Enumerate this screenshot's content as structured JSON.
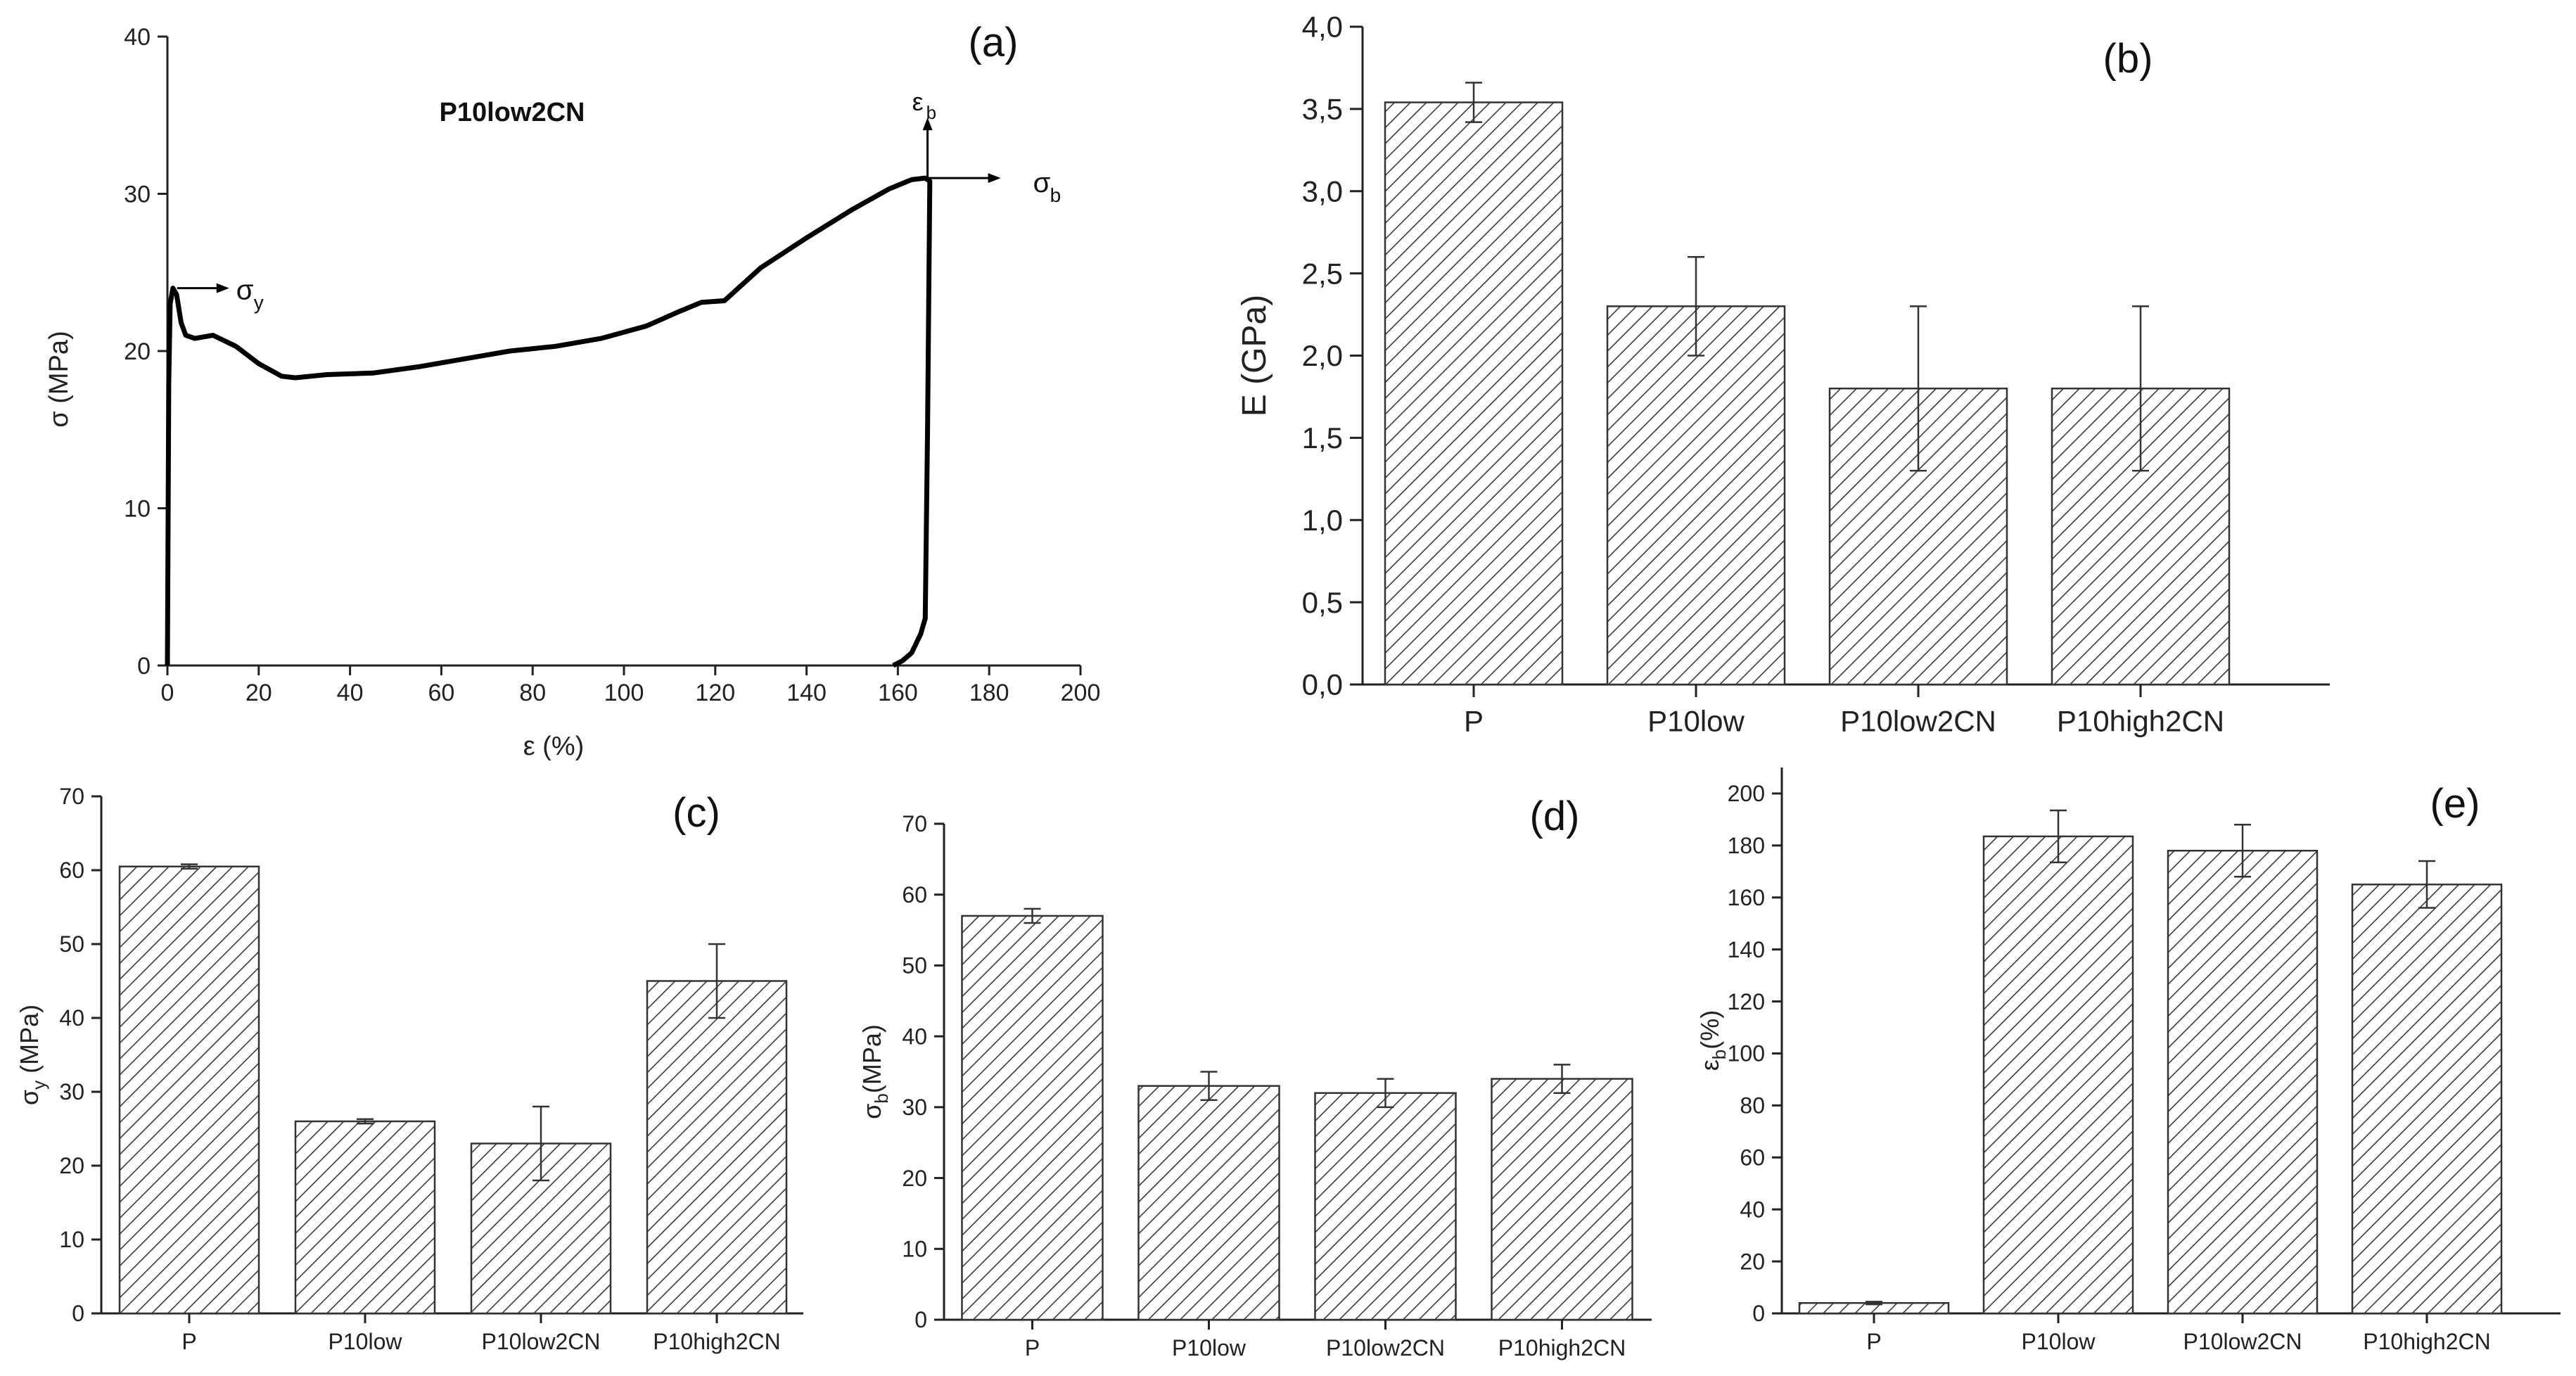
{
  "chart_data": [
    {
      "id": "a",
      "type": "line",
      "panel_label": "(a)",
      "title": "P10low2CN",
      "xlabel": "ε (%)",
      "ylabel": "σ (MPa)",
      "xlim": [
        0,
        200
      ],
      "ylim": [
        0,
        40
      ],
      "x_ticks": [
        "0",
        "20",
        "40",
        "60",
        "80",
        "100",
        "120",
        "140",
        "160",
        "180",
        "200"
      ],
      "y_ticks": [
        "0",
        "10",
        "20",
        "30",
        "40"
      ],
      "x_tick_values": [
        0,
        20,
        40,
        60,
        80,
        100,
        120,
        140,
        160,
        180,
        200
      ],
      "y_tick_values": [
        0,
        10,
        20,
        30,
        40
      ],
      "series": [
        {
          "name": "P10low2CN",
          "points": [
            [
              0,
              0
            ],
            [
              0.3,
              18
            ],
            [
              0.6,
              23
            ],
            [
              1.2,
              24
            ],
            [
              2,
              23.6
            ],
            [
              3,
              21.8
            ],
            [
              4,
              21
            ],
            [
              6,
              20.8
            ],
            [
              10,
              21
            ],
            [
              15,
              20.3
            ],
            [
              20,
              19.2
            ],
            [
              25,
              18.4
            ],
            [
              28,
              18.3
            ],
            [
              35,
              18.5
            ],
            [
              45,
              18.6
            ],
            [
              55,
              19
            ],
            [
              65,
              19.5
            ],
            [
              75,
              20
            ],
            [
              85,
              20.3
            ],
            [
              95,
              20.8
            ],
            [
              105,
              21.6
            ],
            [
              112,
              22.5
            ],
            [
              117,
              23.1
            ],
            [
              122,
              23.2
            ],
            [
              130,
              25.3
            ],
            [
              140,
              27.2
            ],
            [
              150,
              29
            ],
            [
              158,
              30.3
            ],
            [
              163,
              30.9
            ],
            [
              166,
              31
            ],
            [
              167,
              30.8
            ],
            [
              166.5,
              15
            ],
            [
              166,
              3
            ],
            [
              165,
              2
            ],
            [
              163,
              0.8
            ],
            [
              161,
              0.3
            ],
            [
              159,
              0
            ]
          ]
        }
      ],
      "annotations": {
        "yield_label": "σ",
        "yield_sub": "y",
        "yield_point": [
          1.2,
          24
        ],
        "break_stress_label": "σ",
        "break_stress_sub": "b",
        "break_strain_label": "ε",
        "break_strain_sub": "b",
        "break_point": [
          166.5,
          31
        ]
      }
    },
    {
      "id": "b",
      "type": "bar",
      "panel_label": "(b)",
      "xlabel": "",
      "ylabel": "E (GPa)",
      "ylim": [
        0,
        4
      ],
      "y_ticks": [
        "0,0",
        "0,5",
        "1,0",
        "1,5",
        "2,0",
        "2,5",
        "3,0",
        "3,5",
        "4,0"
      ],
      "y_tick_values": [
        0,
        0.5,
        1,
        1.5,
        2,
        2.5,
        3,
        3.5,
        4
      ],
      "categories": [
        "P",
        "P10low",
        "P10low2CN",
        "P10high2CN"
      ],
      "values": [
        3.54,
        2.3,
        1.8,
        1.8
      ],
      "errors": [
        0.12,
        0.3,
        0.5,
        0.5
      ]
    },
    {
      "id": "c",
      "type": "bar",
      "panel_label": "(c)",
      "xlabel": "",
      "ylabel_main": "σ",
      "ylabel_sub": "y",
      "ylabel_tail": " (MPa)",
      "ylim": [
        0,
        70
      ],
      "y_ticks": [
        "0",
        "10",
        "20",
        "30",
        "40",
        "50",
        "60",
        "70"
      ],
      "y_tick_values": [
        0,
        10,
        20,
        30,
        40,
        50,
        60,
        70
      ],
      "categories": [
        "P",
        "P10low",
        "P10low2CN",
        "P10high2CN"
      ],
      "values": [
        60.5,
        26,
        23,
        45
      ],
      "errors": [
        0.3,
        0.3,
        5,
        5
      ]
    },
    {
      "id": "d",
      "type": "bar",
      "panel_label": "(d)",
      "xlabel": "",
      "ylabel_main": "σ",
      "ylabel_sub": "b",
      "ylabel_tail": "(MPa)",
      "ylim": [
        0,
        70
      ],
      "y_ticks": [
        "0",
        "10",
        "20",
        "30",
        "40",
        "50",
        "60",
        "70"
      ],
      "y_tick_values": [
        0,
        10,
        20,
        30,
        40,
        50,
        60,
        70
      ],
      "categories": [
        "P",
        "P10low",
        "P10low2CN",
        "P10high2CN"
      ],
      "values": [
        57,
        33,
        32,
        34
      ],
      "errors": [
        1,
        2,
        2,
        2
      ]
    },
    {
      "id": "e",
      "type": "bar",
      "panel_label": "(e)",
      "xlabel": "",
      "ylabel_main": "ε",
      "ylabel_sub": "b",
      "ylabel_tail": "(%)",
      "ylim": [
        0,
        210
      ],
      "y_ticks": [
        "0",
        "20",
        "40",
        "60",
        "80",
        "100",
        "120",
        "140",
        "160",
        "180",
        "200"
      ],
      "y_tick_values": [
        0,
        20,
        40,
        60,
        80,
        100,
        120,
        140,
        160,
        180,
        200
      ],
      "categories": [
        "P",
        "P10low",
        "P10low2CN",
        "P10high2CN"
      ],
      "values": [
        4,
        183.5,
        178,
        165
      ],
      "errors": [
        0.5,
        10,
        10,
        9
      ]
    }
  ]
}
